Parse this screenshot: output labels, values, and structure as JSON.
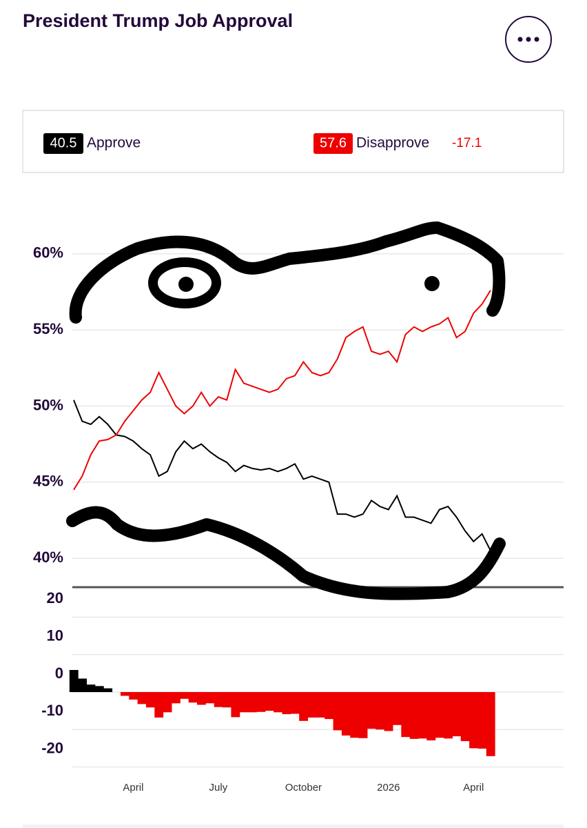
{
  "header": {
    "title": "President Trump Job Approval"
  },
  "summary": {
    "approve": {
      "value": 40.5,
      "label": "Approve"
    },
    "disapprove": {
      "value": 57.6,
      "label": "Disapprove"
    },
    "net": -17.1
  },
  "chart_data": [
    {
      "type": "line",
      "categories": [
        null,
        null,
        null,
        null,
        null,
        null,
        null,
        "April",
        null,
        null,
        null,
        null,
        null,
        null,
        null,
        null,
        null,
        "July",
        null,
        null,
        null,
        null,
        null,
        null,
        null,
        null,
        null,
        "October",
        null,
        null,
        null,
        null,
        null,
        null,
        null,
        null,
        null,
        "2026",
        null,
        null,
        null,
        null,
        null,
        null,
        null,
        null,
        null,
        "April",
        null,
        null
      ],
      "series": [
        {
          "name": "Approve",
          "color": "#000000",
          "values": [
            50.4,
            49.0,
            48.8,
            49.3,
            48.8,
            48.1,
            48.0,
            47.7,
            47.2,
            46.8,
            45.4,
            45.7,
            47.0,
            47.7,
            47.2,
            47.5,
            47.0,
            46.6,
            46.3,
            45.7,
            46.1,
            45.9,
            45.8,
            45.9,
            45.7,
            45.9,
            46.2,
            45.2,
            45.4,
            45.2,
            45.0,
            42.9,
            42.9,
            42.7,
            42.9,
            43.8,
            43.4,
            43.2,
            44.1,
            42.7,
            42.7,
            42.5,
            42.3,
            43.2,
            43.4,
            42.7,
            41.8,
            41.1,
            41.6,
            40.5
          ]
        },
        {
          "name": "Disapprove",
          "color": "#ee0000",
          "values": [
            44.5,
            45.4,
            46.8,
            47.7,
            47.8,
            48.1,
            49.0,
            49.7,
            50.4,
            50.9,
            52.2,
            51.1,
            50.0,
            49.5,
            50.0,
            50.9,
            50.0,
            50.6,
            50.4,
            52.4,
            51.5,
            51.3,
            51.1,
            50.9,
            51.1,
            51.8,
            52.0,
            52.9,
            52.2,
            52.0,
            52.2,
            53.1,
            54.5,
            54.9,
            55.2,
            53.6,
            53.4,
            53.6,
            52.9,
            54.7,
            55.2,
            54.9,
            55.2,
            55.4,
            55.8,
            54.5,
            54.9,
            56.1,
            56.7,
            57.6
          ]
        }
      ],
      "ylim": [
        38.1,
        63
      ],
      "yticks": [
        {
          "value": 60,
          "label": "60%"
        },
        {
          "value": 55,
          "label": "55%"
        },
        {
          "value": 50,
          "label": "50%"
        },
        {
          "value": 45,
          "label": "45%"
        },
        {
          "value": 40,
          "label": "40%"
        }
      ],
      "grid": true
    },
    {
      "type": "area",
      "values": [
        5.9,
        3.6,
        2.0,
        1.6,
        1.0,
        0.0,
        -1.0,
        -2.0,
        -3.2,
        -4.1,
        -6.8,
        -5.4,
        -3.0,
        -1.8,
        -2.8,
        -3.4,
        -3.0,
        -4.0,
        -4.1,
        -6.7,
        -5.4,
        -5.4,
        -5.3,
        -5.0,
        -5.4,
        -5.9,
        -5.8,
        -7.7,
        -6.8,
        -6.8,
        -7.2,
        -10.2,
        -11.6,
        -12.2,
        -12.3,
        -9.8,
        -10.0,
        -10.4,
        -8.8,
        -12.0,
        -12.5,
        -12.4,
        -12.9,
        -12.2,
        -12.4,
        -11.8,
        -13.1,
        -15.0,
        -15.1,
        -17.1
      ],
      "positive_color": "#000000",
      "negative_color": "#ee0000",
      "ylim": [
        -21,
        28
      ],
      "yticks": [
        20,
        10,
        0,
        -10,
        -20
      ],
      "grid": true
    }
  ]
}
